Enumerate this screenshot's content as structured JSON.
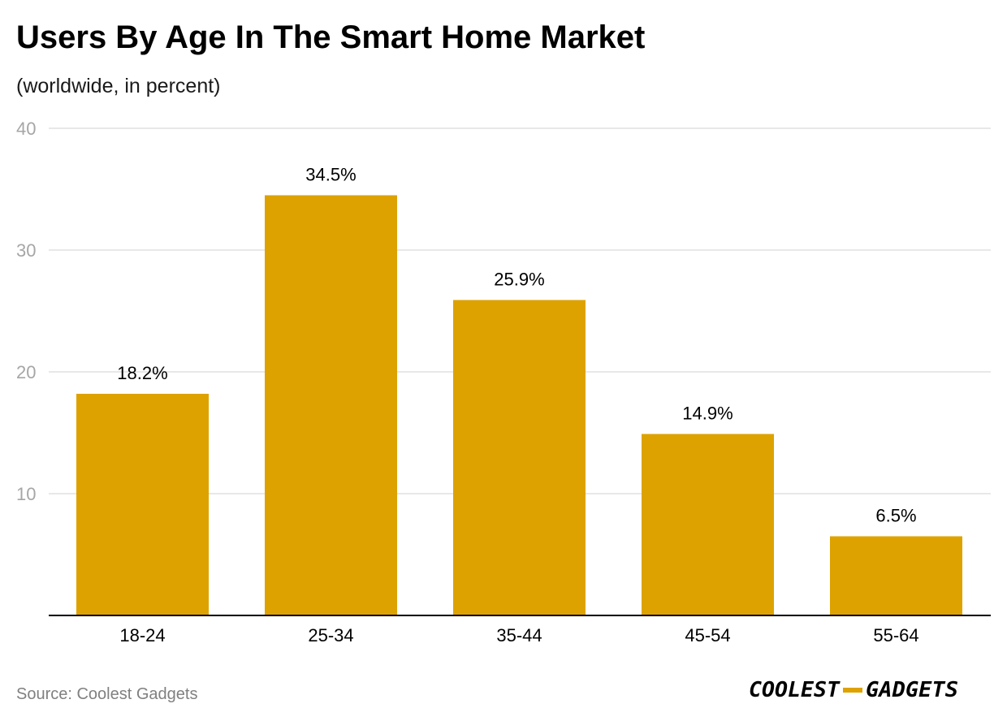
{
  "chart_data": {
    "type": "bar",
    "title": "Users By Age In The Smart Home Market",
    "subtitle": "(worldwide, in percent)",
    "categories": [
      "18-24",
      "25-34",
      "35-44",
      "45-54",
      "55-64"
    ],
    "values": [
      18.2,
      34.5,
      25.9,
      14.9,
      6.5
    ],
    "data_labels": [
      "18.2%",
      "34.5%",
      "25.9%",
      "14.9%",
      "6.5%"
    ],
    "xlabel": "",
    "ylabel": "",
    "ylim": [
      0,
      40
    ],
    "yticks": [
      10,
      20,
      30,
      40
    ],
    "ytick_labels": [
      "10",
      "20",
      "30",
      "40"
    ],
    "grid": true,
    "bar_color": "#DDA200",
    "grid_color": "#E0E0E0",
    "axis_color": "#000000",
    "tick_label_color": "#A6A6A6"
  },
  "footer": {
    "source": "Source: Coolest Gadgets",
    "brand_logo": "COOLEST-GADGETS"
  }
}
